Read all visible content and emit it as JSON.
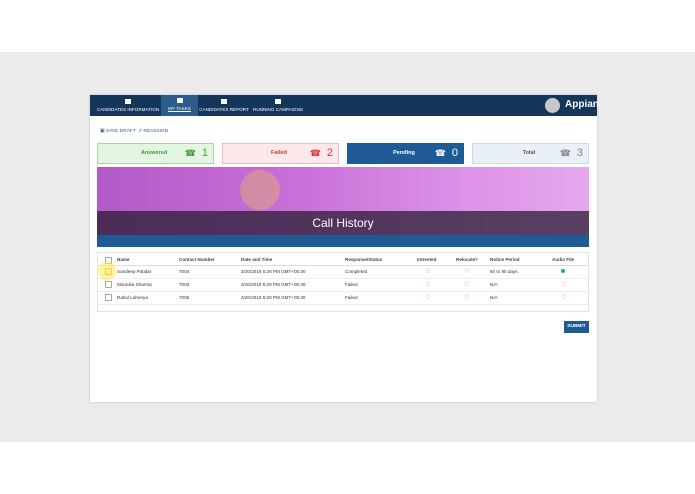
{
  "nav": {
    "tabs": [
      "CANDIDATES INFORMATION",
      "MY TASKS",
      "CANDIDATES REPORT",
      "RUNNING CAMPAIGNS"
    ],
    "logo": "Appian"
  },
  "toolbar": {
    "save_draft": "SAVE DRAFT",
    "reassign": "REASSIGN"
  },
  "cards": [
    {
      "label": "Answered",
      "count": 1
    },
    {
      "label": "Failed",
      "count": 2
    },
    {
      "label": "Pending",
      "count": 0
    },
    {
      "label": "Total",
      "count": 3
    }
  ],
  "banner": {
    "title": "Call History"
  },
  "table": {
    "columns": [
      "Name",
      "Contact Number",
      "Date and Time",
      "Response/Status",
      "Intrested",
      "Relocate?",
      "Notice Period",
      "Audio File"
    ],
    "rows": [
      {
        "name": "Sandeep Patidar",
        "contact": "7004",
        "date": "3/20/2019 5:28 PM GMT+05:30",
        "status": "Completed",
        "notice": "60 to 90 days"
      },
      {
        "name": "Mounika Sharma",
        "contact": "7003",
        "date": "3/20/2019 5:29 PM GMT+05:30",
        "status": "Failed",
        "notice": "N/A"
      },
      {
        "name": "Rahul Laheriya",
        "contact": "7005",
        "date": "3/20/2019 5:28 PM GMT+05:30",
        "status": "Failed",
        "notice": "N/A"
      }
    ]
  },
  "submit": "SUBMIT"
}
